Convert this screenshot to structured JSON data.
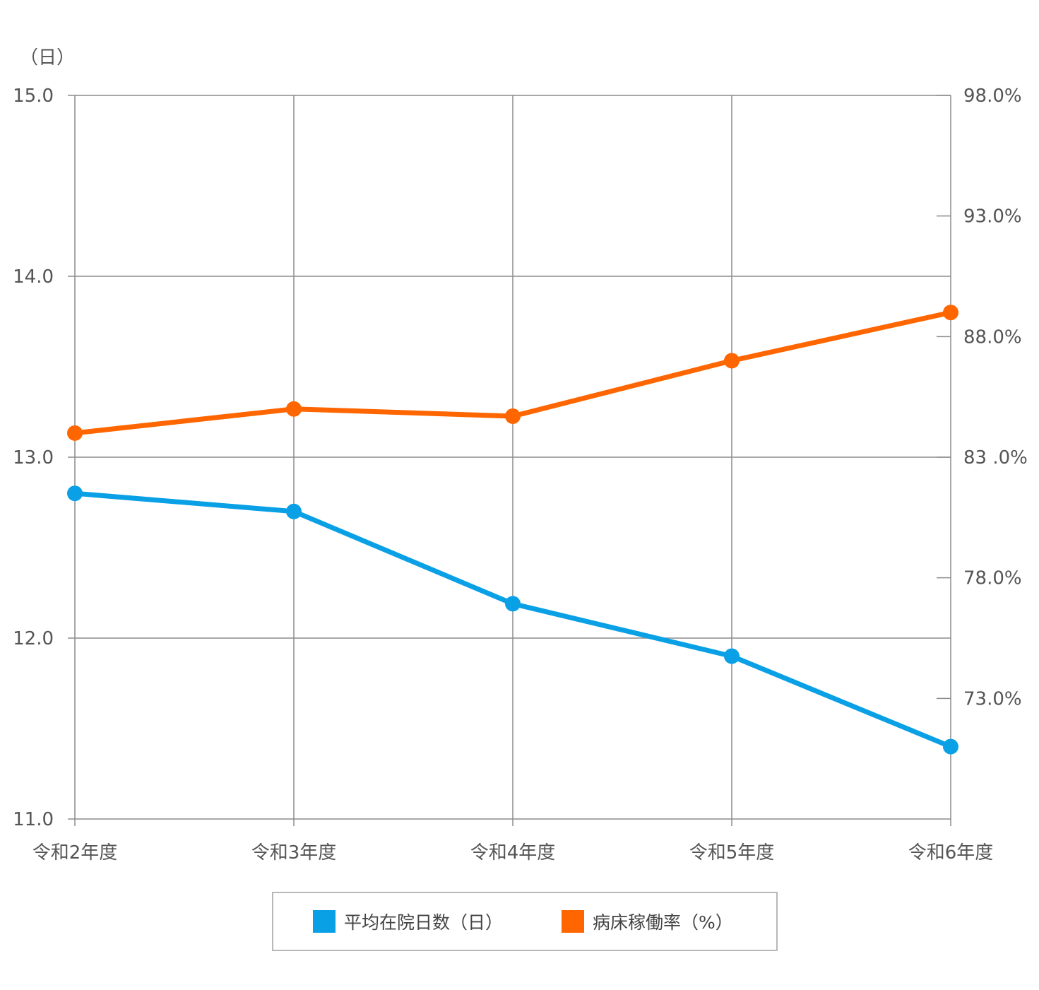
{
  "chart_data": {
    "type": "line",
    "left_unit_label": "（日）",
    "categories": [
      "令和2年度",
      "令和3年度",
      "令和4年度",
      "令和5年度",
      "令和6年度"
    ],
    "y_left": {
      "min": 11.0,
      "max": 15.0,
      "ticks": [
        11.0,
        12.0,
        13.0,
        14.0,
        15.0
      ],
      "tick_labels": [
        "11.0",
        "12.0",
        "13.0",
        "14.0",
        "15.0"
      ]
    },
    "y_right": {
      "min": 68.0,
      "max": 98.0,
      "ticks": [
        73.0,
        78.0,
        83.0,
        88.0,
        93.0,
        98.0
      ],
      "tick_labels": [
        "73.0%",
        "78.0%",
        "83 .0%",
        "88.0%",
        "93.0%",
        "98.0%"
      ]
    },
    "grid": true,
    "legend_position": "bottom",
    "series": [
      {
        "name": "平均在院日数（日）",
        "axis": "left",
        "color": "#0aa0e6",
        "values": [
          12.8,
          12.7,
          12.19,
          11.9,
          11.4
        ]
      },
      {
        "name": "病床稼働率（%）",
        "axis": "right",
        "color": "#ff6600",
        "values": [
          84.0,
          85.0,
          84.7,
          87.0,
          89.0
        ]
      }
    ]
  }
}
